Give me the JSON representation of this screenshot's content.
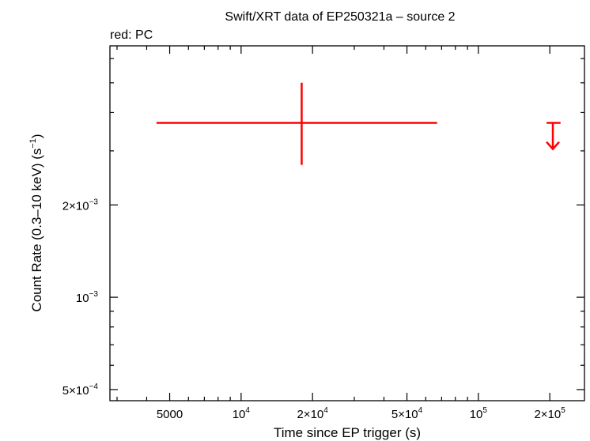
{
  "chart_data": {
    "type": "scatter",
    "title": "Swift/XRT data of EP250321a – source 2",
    "subtitle": "red: PC",
    "xlabel": "Time since EP trigger (s)",
    "ylabel_parts": {
      "main": "Count Rate (0.3–10 keV) (s",
      "sup": "−1",
      "close": ")"
    },
    "xscale": "log",
    "yscale": "log",
    "xlim": [
      2800,
      280000
    ],
    "ylim": [
      0.00046,
      0.0066
    ],
    "x_ticks": [
      {
        "value": 5000,
        "mant": "5000",
        "exp": ""
      },
      {
        "value": 10000,
        "mant": "10",
        "exp": "4"
      },
      {
        "value": 20000,
        "mant": "2×10",
        "exp": "4"
      },
      {
        "value": 50000,
        "mant": "5×10",
        "exp": "4"
      },
      {
        "value": 100000,
        "mant": "10",
        "exp": "5"
      },
      {
        "value": 200000,
        "mant": "2×10",
        "exp": "5"
      }
    ],
    "y_ticks": [
      {
        "value": 0.0005,
        "mant": "5×10",
        "exp": "−4"
      },
      {
        "value": 0.001,
        "mant": "10",
        "exp": "−3"
      },
      {
        "value": 0.002,
        "mant": "2×10",
        "exp": "−3"
      }
    ],
    "series": [
      {
        "color": "#ff0000",
        "points": [
          {
            "x": 18000,
            "x_lo": 4400,
            "x_hi": 67000,
            "y": 0.0037,
            "y_lo": 0.0027,
            "y_hi": 0.005
          }
        ],
        "upper_limits": [
          {
            "x": 206000,
            "x_lo": 194000,
            "x_hi": 222000,
            "y": 0.0037
          }
        ]
      }
    ]
  }
}
